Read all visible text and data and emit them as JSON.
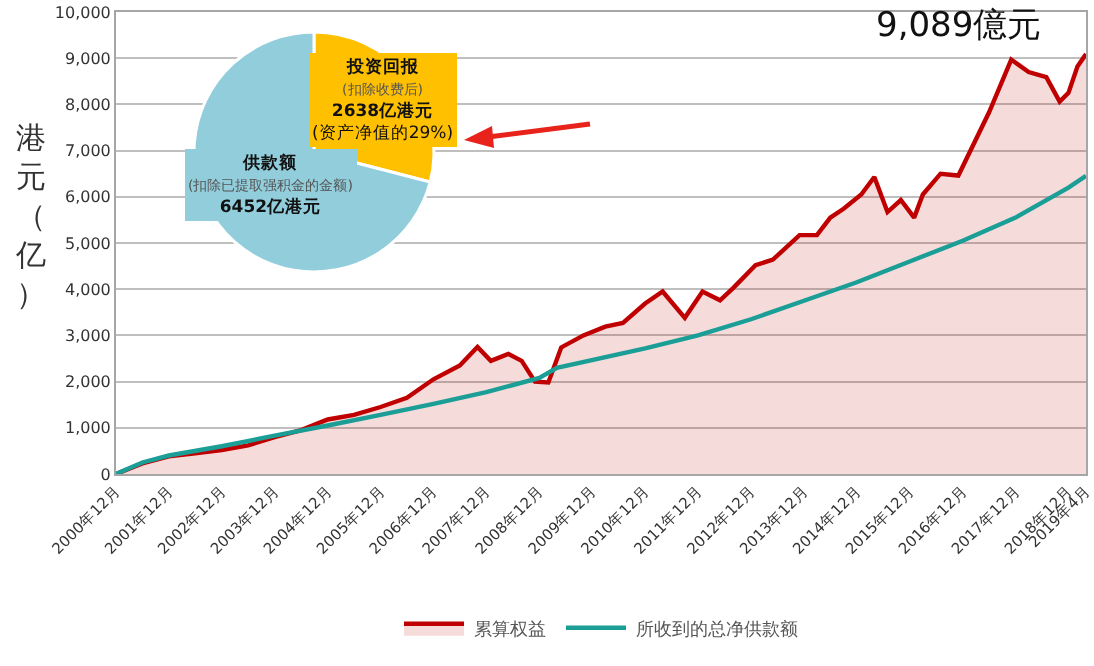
{
  "chart_data": [
    {
      "type": "line",
      "ylabel": "港元（亿）",
      "xlim": [
        "2000-12",
        "2019-04"
      ],
      "xticks": [
        {
          "value": "2000-12",
          "label": "2000年12月"
        },
        {
          "value": "2001-12",
          "label": "2001年12月"
        },
        {
          "value": "2002-12",
          "label": "2002年12月"
        },
        {
          "value": "2003-12",
          "label": "2003年12月"
        },
        {
          "value": "2004-12",
          "label": "2004年12月"
        },
        {
          "value": "2005-12",
          "label": "2005年12月"
        },
        {
          "value": "2006-12",
          "label": "2006年12月"
        },
        {
          "value": "2007-12",
          "label": "2007年12月"
        },
        {
          "value": "2008-12",
          "label": "2008年12月"
        },
        {
          "value": "2009-12",
          "label": "2009年12月"
        },
        {
          "value": "2010-12",
          "label": "2010年12月"
        },
        {
          "value": "2011-12",
          "label": "2011年12月"
        },
        {
          "value": "2012-12",
          "label": "2012年12月"
        },
        {
          "value": "2013-12",
          "label": "2013年12月"
        },
        {
          "value": "2014-12",
          "label": "2014年12月"
        },
        {
          "value": "2015-12",
          "label": "2015年12月"
        },
        {
          "value": "2016-12",
          "label": "2016年12月"
        },
        {
          "value": "2017-12",
          "label": "2017年12月"
        },
        {
          "value": "2018-12",
          "label": "2018年12月"
        },
        {
          "value": "2019-04",
          "label": "2019年4月"
        }
      ],
      "ylim": [
        0,
        10000
      ],
      "yticks": [
        0,
        {
          "value": 1000,
          "label": "1,000"
        },
        {
          "value": 2000,
          "label": "2,000"
        },
        {
          "value": 3000,
          "label": "3,000"
        },
        {
          "value": 4000,
          "label": "4,000"
        },
        {
          "value": 5000,
          "label": "5,000"
        },
        {
          "value": 6000,
          "label": "6,000"
        },
        {
          "value": 7000,
          "label": "7,000"
        },
        {
          "value": 8000,
          "label": "8,000"
        },
        {
          "value": 9000,
          "label": "9,000"
        },
        {
          "value": 10000,
          "label": "10,000"
        }
      ],
      "grid": "y",
      "legend": "bottom",
      "marker": "none",
      "line_style": "solid",
      "series": [
        {
          "name": "累算权益",
          "type": "area",
          "color": "#c00000",
          "x": [
            "2000-12",
            "2001-06",
            "2001-12",
            "2002-06",
            "2002-12",
            "2003-06",
            "2003-12",
            "2004-06",
            "2004-12",
            "2005-06",
            "2005-12",
            "2006-06",
            "2006-12",
            "2007-06",
            "2007-10",
            "2008-01",
            "2008-05",
            "2008-08",
            "2008-11",
            "2009-02",
            "2009-05",
            "2009-10",
            "2010-03",
            "2010-07",
            "2010-12",
            "2011-04",
            "2011-09",
            "2012-01",
            "2012-05",
            "2012-08",
            "2013-01",
            "2013-05",
            "2013-11",
            "2014-03",
            "2014-06",
            "2014-09",
            "2015-01",
            "2015-04",
            "2015-07",
            "2015-10",
            "2016-01",
            "2016-03",
            "2016-07",
            "2016-11",
            "2017-06",
            "2017-11",
            "2018-03",
            "2018-07",
            "2018-10",
            "2018-12",
            "2019-02",
            "2019-04"
          ],
          "values": [
            0,
            230,
            380,
            450,
            520,
            620,
            800,
            950,
            1180,
            1280,
            1450,
            1650,
            2050,
            2350,
            2750,
            2450,
            2600,
            2450,
            2000,
            1980,
            2740,
            3000,
            3190,
            3270,
            3690,
            3950,
            3380,
            3950,
            3760,
            4030,
            4520,
            4640,
            5170,
            5170,
            5550,
            5740,
            6050,
            6430,
            5670,
            5930,
            5550,
            6050,
            6500,
            6460,
            7830,
            8970,
            8700,
            8590,
            8060,
            8250,
            8820,
            9089
          ]
        },
        {
          "name": "所收到的总净供款额",
          "type": "line",
          "color": "#1a9e96",
          "x": [
            "2000-12",
            "2001-06",
            "2001-12",
            "2002-12",
            "2003-12",
            "2004-12",
            "2005-12",
            "2006-12",
            "2007-12",
            "2008-12",
            "2009-04",
            "2010-12",
            "2011-12",
            "2012-12",
            "2013-12",
            "2014-12",
            "2015-12",
            "2016-12",
            "2017-12",
            "2018-12",
            "2019-04"
          ],
          "values": [
            0,
            250,
            400,
            600,
            830,
            1050,
            1280,
            1520,
            1770,
            2080,
            2300,
            2720,
            3000,
            3350,
            3750,
            4150,
            4600,
            5050,
            5550,
            6200,
            6452
          ]
        }
      ],
      "annotations": [
        {
          "text": "9,089億元",
          "x": "2019-04",
          "y": 9089
        }
      ]
    },
    {
      "type": "pie",
      "categories": [
        "投资回报\n(扣除收费后)",
        "供款额\n(扣除已提取强积金的金额)"
      ],
      "values": [
        2638,
        6452
      ],
      "value_labels": [
        "2638亿港元\n(资产净值的29%)",
        "6452亿港元"
      ],
      "colors": [
        "#ffc000",
        "#92cddc"
      ]
    }
  ]
}
